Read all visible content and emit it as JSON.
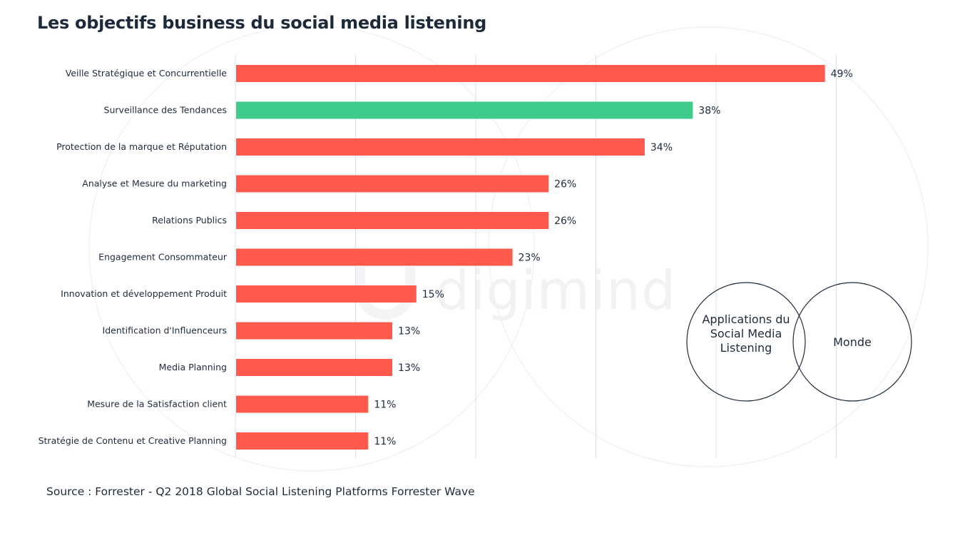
{
  "title": "Les objectifs business du social media listening",
  "source": "Source : Forrester  -  Q2 2018 Global Social Listening Platforms Forrester Wave",
  "watermark": "digimind",
  "legend": {
    "items": [
      {
        "label": "Applications du Social Media Listening"
      },
      {
        "label": "Monde"
      }
    ]
  },
  "colors": {
    "default_bar": "#ff5a4c",
    "highlight_bar": "#3ecb8c",
    "grid": "#dcdfe5",
    "text": "#1e2b3c"
  },
  "chart_data": {
    "type": "bar",
    "orientation": "horizontal",
    "title": "Les objectifs business du social media listening",
    "xlim": [
      0,
      50
    ],
    "grid": true,
    "legend_position": "bottom-right",
    "categories": [
      "Veille Stratégique et Concurrentielle",
      "Surveillance des Tendances",
      "Protection de la marque et Réputation",
      "Analyse et Mesure du marketing",
      "Relations Publics",
      "Engagement Consommateur",
      "Innovation et développement Produit",
      "Identification d'Influenceurs",
      "Media Planning",
      "Mesure de la Satisfaction client",
      "Stratégie de Contenu et Creative Planning"
    ],
    "values": [
      49,
      38,
      34,
      26,
      26,
      23,
      15,
      13,
      13,
      11,
      11
    ],
    "value_labels": [
      "49%",
      "38%",
      "34%",
      "26%",
      "26%",
      "23%",
      "15%",
      "13%",
      "13%",
      "11%",
      "11%"
    ],
    "highlighted": [
      "Surveillance des Tendances"
    ]
  }
}
